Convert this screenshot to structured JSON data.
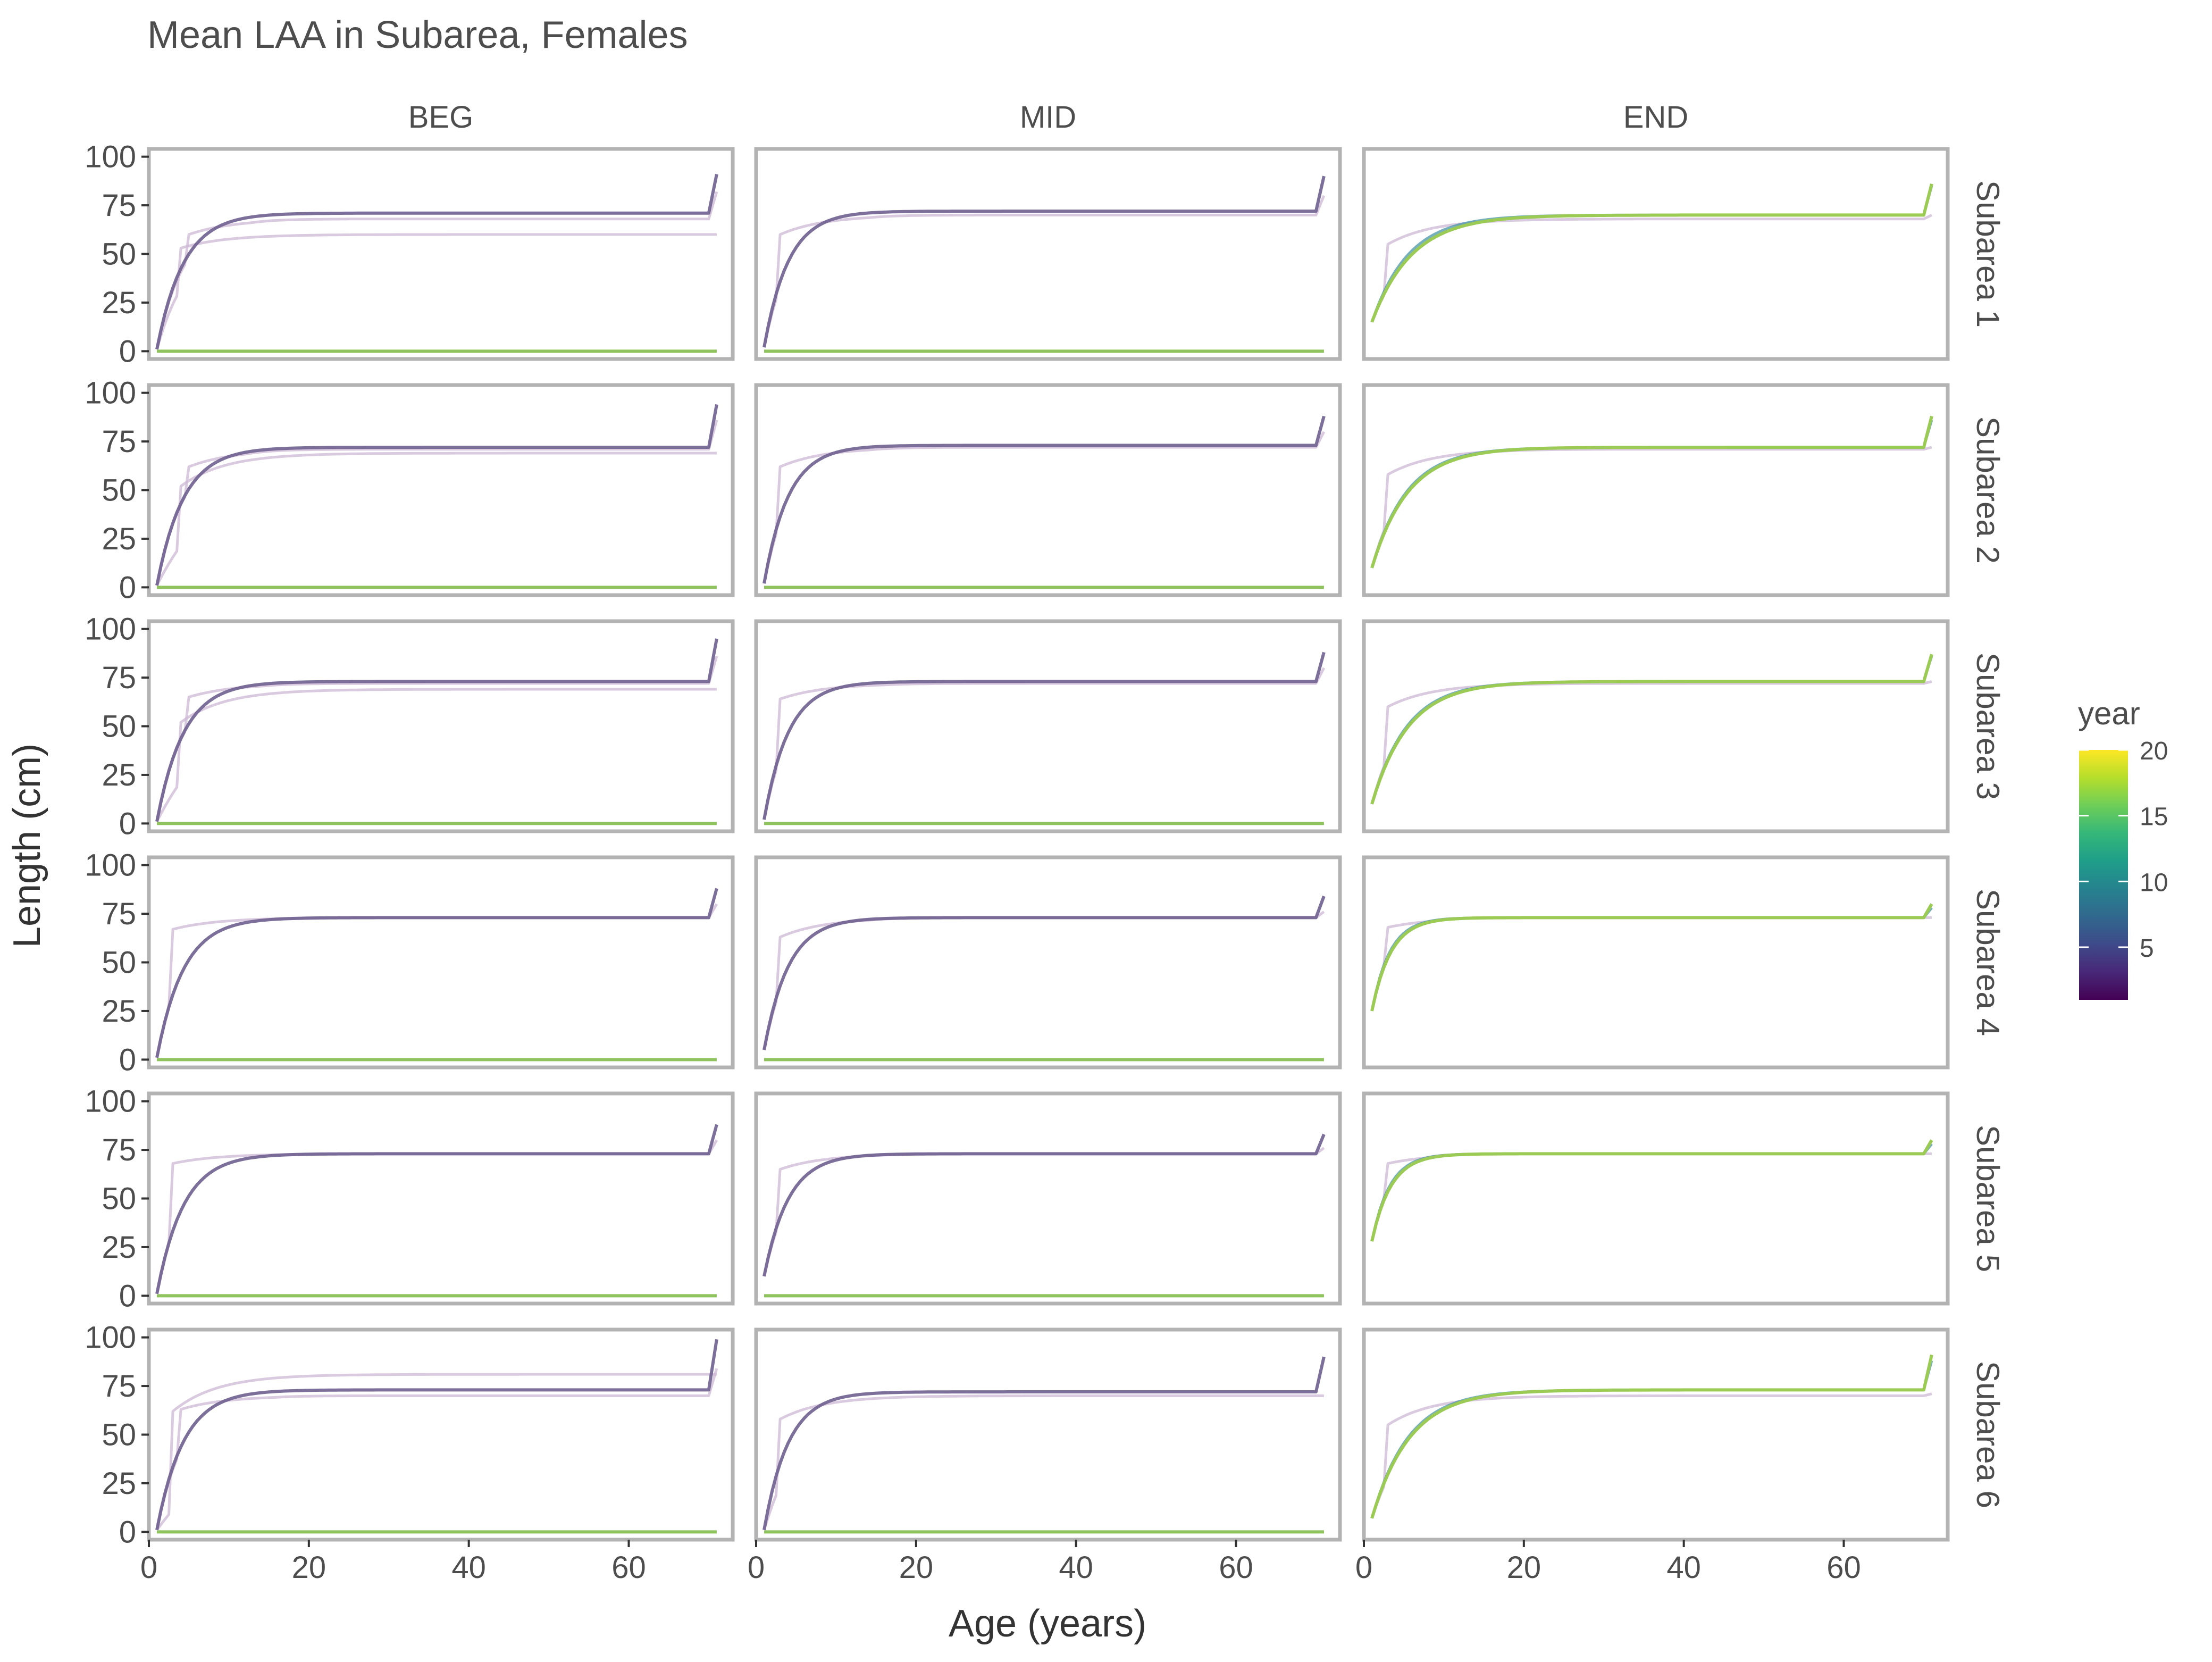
{
  "chart_data": {
    "type": "line",
    "title": "Mean LAA in Subarea, Females",
    "xlabel": "Age (years)",
    "ylabel": "Length (cm)",
    "columns": [
      "BEG",
      "MID",
      "END"
    ],
    "rows": [
      "Subarea 1",
      "Subarea 2",
      "Subarea 3",
      "Subarea 4",
      "Subarea 5",
      "Subarea 6"
    ],
    "xlim": [
      0,
      73
    ],
    "ylim": [
      -4,
      104
    ],
    "xticks": [
      0,
      20,
      40,
      60
    ],
    "yticks": [
      0,
      25,
      50,
      75,
      100
    ],
    "grid": false,
    "legend": {
      "title": "year",
      "position": "right",
      "type": "colorbar",
      "range": [
        1,
        20
      ],
      "ticks": [
        5,
        10,
        15,
        20
      ],
      "colormap": "viridis"
    },
    "colors": {
      "faint_series": "#cdb8d6",
      "dark_series": "#6e5f8f",
      "zero_line": "#8fc35e",
      "end_latest": "#9bcb55",
      "end_mid": "#3b8fa0",
      "panel_border": "#b3b3b3",
      "text": "#4d4d4d"
    },
    "note_series": "Each panel holds ages 1-71; curves rise steeply to a plateau and spike at age 71. BEG and MID panels show a flat year-20 line at 0.",
    "panels": [
      {
        "row": "Subarea 1",
        "column": "BEG",
        "series": [
          {
            "role": "faint",
            "values": {
              "start": 1,
              "plateau": 60,
              "k": 0.25,
              "jump_age": 4,
              "jump_to": 53,
              "end": 60
            }
          },
          {
            "role": "faint",
            "values": {
              "start": 1,
              "plateau": 68,
              "k": 0.3,
              "jump_age": 5,
              "jump_to": 60,
              "end": 82
            }
          },
          {
            "role": "dark",
            "values": {
              "start": 1,
              "plateau": 71,
              "k": 0.3,
              "jump_age": 0,
              "jump_to": 0,
              "end": 91
            }
          },
          {
            "role": "zero",
            "values": {
              "start": 0,
              "plateau": 0,
              "k": 0,
              "jump_age": 0,
              "jump_to": 0,
              "end": 0
            }
          }
        ]
      },
      {
        "row": "Subarea 1",
        "column": "MID",
        "series": [
          {
            "role": "faint",
            "values": {
              "start": 2,
              "plateau": 70,
              "k": 0.3,
              "jump_age": 3,
              "jump_to": 60,
              "end": 80
            }
          },
          {
            "role": "dark",
            "values": {
              "start": 2,
              "plateau": 72,
              "k": 0.33,
              "jump_age": 0,
              "jump_to": 0,
              "end": 90
            }
          },
          {
            "role": "zero",
            "values": {
              "start": 0,
              "plateau": 0,
              "k": 0,
              "jump_age": 0,
              "jump_to": 0,
              "end": 0
            }
          }
        ]
      },
      {
        "row": "Subarea 1",
        "column": "END",
        "series": [
          {
            "role": "faint",
            "values": {
              "start": 15,
              "plateau": 68,
              "k": 0.2,
              "jump_age": 3,
              "jump_to": 55,
              "end": 70
            }
          },
          {
            "role": "mid",
            "values": {
              "start": 15,
              "plateau": 70,
              "k": 0.22,
              "jump_age": 0,
              "jump_to": 0,
              "end": 85
            }
          },
          {
            "role": "latest",
            "values": {
              "start": 15,
              "plateau": 70,
              "k": 0.2,
              "jump_age": 0,
              "jump_to": 0,
              "end": 86
            }
          }
        ]
      },
      {
        "row": "Subarea 2",
        "column": "BEG",
        "series": [
          {
            "role": "faint",
            "values": {
              "start": 1,
              "plateau": 69,
              "k": 0.12,
              "jump_age": 4,
              "jump_to": 52,
              "end": 69
            }
          },
          {
            "role": "faint",
            "values": {
              "start": 1,
              "plateau": 71,
              "k": 0.3,
              "jump_age": 5,
              "jump_to": 62,
              "end": 86
            }
          },
          {
            "role": "dark",
            "values": {
              "start": 1,
              "plateau": 72,
              "k": 0.3,
              "jump_age": 0,
              "jump_to": 0,
              "end": 94
            }
          },
          {
            "role": "zero",
            "values": {
              "start": 0,
              "plateau": 0,
              "k": 0,
              "jump_age": 0,
              "jump_to": 0,
              "end": 0
            }
          }
        ]
      },
      {
        "row": "Subarea 2",
        "column": "MID",
        "series": [
          {
            "role": "faint",
            "values": {
              "start": 2,
              "plateau": 72,
              "k": 0.3,
              "jump_age": 3,
              "jump_to": 62,
              "end": 80
            }
          },
          {
            "role": "dark",
            "values": {
              "start": 2,
              "plateau": 73,
              "k": 0.33,
              "jump_age": 0,
              "jump_to": 0,
              "end": 88
            }
          },
          {
            "role": "zero",
            "values": {
              "start": 0,
              "plateau": 0,
              "k": 0,
              "jump_age": 0,
              "jump_to": 0,
              "end": 0
            }
          }
        ]
      },
      {
        "row": "Subarea 2",
        "column": "END",
        "series": [
          {
            "role": "faint",
            "values": {
              "start": 10,
              "plateau": 71,
              "k": 0.25,
              "jump_age": 3,
              "jump_to": 58,
              "end": 72
            }
          },
          {
            "role": "mid",
            "values": {
              "start": 10,
              "plateau": 72,
              "k": 0.23,
              "jump_age": 0,
              "jump_to": 0,
              "end": 86
            }
          },
          {
            "role": "latest",
            "values": {
              "start": 10,
              "plateau": 72,
              "k": 0.22,
              "jump_age": 0,
              "jump_to": 0,
              "end": 88
            }
          }
        ]
      },
      {
        "row": "Subarea 3",
        "column": "BEG",
        "series": [
          {
            "role": "faint",
            "values": {
              "start": 1,
              "plateau": 69,
              "k": 0.12,
              "jump_age": 4,
              "jump_to": 52,
              "end": 69
            }
          },
          {
            "role": "faint",
            "values": {
              "start": 1,
              "plateau": 72,
              "k": 0.3,
              "jump_age": 5,
              "jump_to": 65,
              "end": 86
            }
          },
          {
            "role": "dark",
            "values": {
              "start": 1,
              "plateau": 73,
              "k": 0.3,
              "jump_age": 0,
              "jump_to": 0,
              "end": 95
            }
          },
          {
            "role": "zero",
            "values": {
              "start": 0,
              "plateau": 0,
              "k": 0,
              "jump_age": 0,
              "jump_to": 0,
              "end": 0
            }
          }
        ]
      },
      {
        "row": "Subarea 3",
        "column": "MID",
        "series": [
          {
            "role": "faint",
            "values": {
              "start": 2,
              "plateau": 72,
              "k": 0.3,
              "jump_age": 3,
              "jump_to": 64,
              "end": 80
            }
          },
          {
            "role": "dark",
            "values": {
              "start": 2,
              "plateau": 73,
              "k": 0.33,
              "jump_age": 0,
              "jump_to": 0,
              "end": 88
            }
          },
          {
            "role": "zero",
            "values": {
              "start": 0,
              "plateau": 0,
              "k": 0,
              "jump_age": 0,
              "jump_to": 0,
              "end": 0
            }
          }
        ]
      },
      {
        "row": "Subarea 3",
        "column": "END",
        "series": [
          {
            "role": "faint",
            "values": {
              "start": 10,
              "plateau": 72,
              "k": 0.25,
              "jump_age": 3,
              "jump_to": 60,
              "end": 73
            }
          },
          {
            "role": "mid",
            "values": {
              "start": 10,
              "plateau": 73,
              "k": 0.23,
              "jump_age": 0,
              "jump_to": 0,
              "end": 86
            }
          },
          {
            "role": "latest",
            "values": {
              "start": 10,
              "plateau": 73,
              "k": 0.22,
              "jump_age": 0,
              "jump_to": 0,
              "end": 87
            }
          }
        ]
      },
      {
        "row": "Subarea 4",
        "column": "BEG",
        "series": [
          {
            "role": "faint",
            "values": {
              "start": 1,
              "plateau": 73,
              "k": 0.3,
              "jump_age": 3,
              "jump_to": 67,
              "end": 80
            }
          },
          {
            "role": "dark",
            "values": {
              "start": 1,
              "plateau": 73,
              "k": 0.3,
              "jump_age": 0,
              "jump_to": 0,
              "end": 88
            }
          },
          {
            "role": "zero",
            "values": {
              "start": 0,
              "plateau": 0,
              "k": 0,
              "jump_age": 0,
              "jump_to": 0,
              "end": 0
            }
          }
        ]
      },
      {
        "row": "Subarea 4",
        "column": "MID",
        "series": [
          {
            "role": "faint",
            "values": {
              "start": 5,
              "plateau": 73,
              "k": 0.3,
              "jump_age": 3,
              "jump_to": 63,
              "end": 76
            }
          },
          {
            "role": "dark",
            "values": {
              "start": 5,
              "plateau": 73,
              "k": 0.33,
              "jump_age": 0,
              "jump_to": 0,
              "end": 84
            }
          },
          {
            "role": "zero",
            "values": {
              "start": 0,
              "plateau": 0,
              "k": 0,
              "jump_age": 0,
              "jump_to": 0,
              "end": 0
            }
          }
        ]
      },
      {
        "row": "Subarea 4",
        "column": "END",
        "series": [
          {
            "role": "faint",
            "values": {
              "start": 25,
              "plateau": 73,
              "k": 0.45,
              "jump_age": 3,
              "jump_to": 68,
              "end": 73
            }
          },
          {
            "role": "mid",
            "values": {
              "start": 25,
              "plateau": 73,
              "k": 0.45,
              "jump_age": 0,
              "jump_to": 0,
              "end": 78
            }
          },
          {
            "role": "latest",
            "values": {
              "start": 25,
              "plateau": 73,
              "k": 0.42,
              "jump_age": 0,
              "jump_to": 0,
              "end": 80
            }
          }
        ]
      },
      {
        "row": "Subarea 5",
        "column": "BEG",
        "series": [
          {
            "role": "faint",
            "values": {
              "start": 1,
              "plateau": 73,
              "k": 0.3,
              "jump_age": 3,
              "jump_to": 68,
              "end": 80
            }
          },
          {
            "role": "dark",
            "values": {
              "start": 1,
              "plateau": 73,
              "k": 0.3,
              "jump_age": 0,
              "jump_to": 0,
              "end": 88
            }
          },
          {
            "role": "zero",
            "values": {
              "start": 0,
              "plateau": 0,
              "k": 0,
              "jump_age": 0,
              "jump_to": 0,
              "end": 0
            }
          }
        ]
      },
      {
        "row": "Subarea 5",
        "column": "MID",
        "series": [
          {
            "role": "faint",
            "values": {
              "start": 10,
              "plateau": 73,
              "k": 0.3,
              "jump_age": 3,
              "jump_to": 65,
              "end": 76
            }
          },
          {
            "role": "dark",
            "values": {
              "start": 10,
              "plateau": 73,
              "k": 0.33,
              "jump_age": 0,
              "jump_to": 0,
              "end": 83
            }
          },
          {
            "role": "zero",
            "values": {
              "start": 0,
              "plateau": 0,
              "k": 0,
              "jump_age": 0,
              "jump_to": 0,
              "end": 0
            }
          }
        ]
      },
      {
        "row": "Subarea 5",
        "column": "END",
        "series": [
          {
            "role": "faint",
            "values": {
              "start": 28,
              "plateau": 73,
              "k": 0.45,
              "jump_age": 3,
              "jump_to": 68,
              "end": 73
            }
          },
          {
            "role": "mid",
            "values": {
              "start": 28,
              "plateau": 73,
              "k": 0.45,
              "jump_age": 0,
              "jump_to": 0,
              "end": 78
            }
          },
          {
            "role": "latest",
            "values": {
              "start": 28,
              "plateau": 73,
              "k": 0.42,
              "jump_age": 0,
              "jump_to": 0,
              "end": 80
            }
          }
        ]
      },
      {
        "row": "Subarea 6",
        "column": "BEG",
        "series": [
          {
            "role": "faint",
            "values": {
              "start": 1,
              "plateau": 81,
              "k": 0.07,
              "jump_age": 3,
              "jump_to": 62,
              "end": 81
            }
          },
          {
            "role": "faint",
            "values": {
              "start": 1,
              "plateau": 70,
              "k": 0.3,
              "jump_age": 4,
              "jump_to": 63,
              "end": 84
            }
          },
          {
            "role": "dark",
            "values": {
              "start": 1,
              "plateau": 73,
              "k": 0.3,
              "jump_age": 0,
              "jump_to": 0,
              "end": 99
            }
          },
          {
            "role": "zero",
            "values": {
              "start": 0,
              "plateau": 0,
              "k": 0,
              "jump_age": 0,
              "jump_to": 0,
              "end": 0
            }
          }
        ]
      },
      {
        "row": "Subarea 6",
        "column": "MID",
        "series": [
          {
            "role": "faint",
            "values": {
              "start": 1,
              "plateau": 70,
              "k": 0.2,
              "jump_age": 3,
              "jump_to": 58,
              "end": 70
            }
          },
          {
            "role": "dark",
            "values": {
              "start": 1,
              "plateau": 72,
              "k": 0.33,
              "jump_age": 0,
              "jump_to": 0,
              "end": 90
            }
          },
          {
            "role": "zero",
            "values": {
              "start": 0,
              "plateau": 0,
              "k": 0,
              "jump_age": 0,
              "jump_to": 0,
              "end": 0
            }
          }
        ]
      },
      {
        "row": "Subarea 6",
        "column": "END",
        "series": [
          {
            "role": "faint",
            "values": {
              "start": 7,
              "plateau": 70,
              "k": 0.2,
              "jump_age": 3,
              "jump_to": 55,
              "end": 71
            }
          },
          {
            "role": "mid",
            "values": {
              "start": 7,
              "plateau": 73,
              "k": 0.22,
              "jump_age": 0,
              "jump_to": 0,
              "end": 88
            }
          },
          {
            "role": "latest",
            "values": {
              "start": 7,
              "plateau": 73,
              "k": 0.21,
              "jump_age": 0,
              "jump_to": 0,
              "end": 91
            }
          }
        ]
      }
    ]
  }
}
